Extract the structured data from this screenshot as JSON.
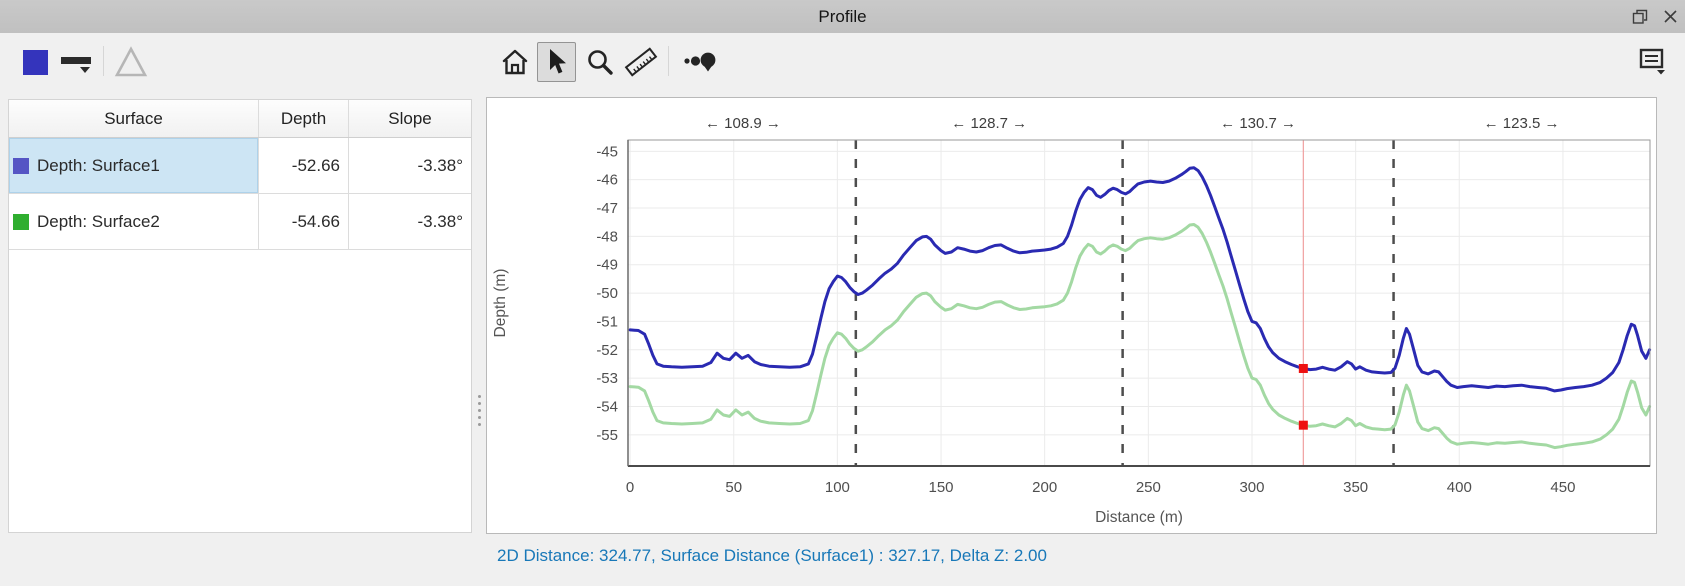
{
  "window": {
    "title": "Profile",
    "icons": [
      "float-window",
      "close"
    ]
  },
  "colors": {
    "selection-bg": "#cde5f4",
    "status-text": "#1878b8",
    "toolbar-swatch": "#3434bc",
    "surface1-swatch": "#5555c4",
    "surface2-swatch": "#2fae2f"
  },
  "toolbar": {
    "icons": [
      "color-swatch",
      "line-width-dropdown",
      "triangle-tool",
      "home",
      "pointer",
      "zoom",
      "measure-ruler",
      "show-points",
      "label-box-dropdown"
    ],
    "active_tool": "pointer"
  },
  "table": {
    "columns": [
      "Surface",
      "Depth",
      "Slope"
    ],
    "rows": [
      {
        "label": "Depth: Surface1",
        "depth": "-52.66",
        "slope": "-3.38°",
        "selected": true
      },
      {
        "label": "Depth: Surface2",
        "depth": "-54.66",
        "slope": "-3.38°",
        "selected": false
      }
    ]
  },
  "chart_data": {
    "type": "line",
    "title": "",
    "xlabel": "Distance (m)",
    "ylabel": "Depth (m)",
    "xlim": [
      -1,
      492
    ],
    "ylim": [
      -56.1,
      -44.6
    ],
    "x_ticks": [
      0,
      50,
      100,
      150,
      200,
      250,
      300,
      350,
      400,
      450
    ],
    "y_ticks": [
      -45,
      -46,
      -47,
      -48,
      -49,
      -50,
      -51,
      -52,
      -53,
      -54,
      -55
    ],
    "grid": true,
    "segments": [
      {
        "label": "← 108.9 →",
        "from": 0,
        "to": 108.9
      },
      {
        "label": "← 128.7 →",
        "from": 108.9,
        "to": 237.6
      },
      {
        "label": "← 130.7 →",
        "from": 237.6,
        "to": 368.3
      },
      {
        "label": "← 123.5 →",
        "from": 368.3,
        "to": 491.8
      }
    ],
    "cursor": {
      "x": 324.77,
      "line_color": "#f0a0a0",
      "marker_color": "#ee1111",
      "markers": [
        {
          "series": "Surface1",
          "y": -52.66
        },
        {
          "series": "Surface2",
          "y": -54.66
        }
      ]
    },
    "series": [
      {
        "name": "Surface1",
        "color": "#2a2ab2",
        "width": 3,
        "points": [
          [
            0,
            -51.3
          ],
          [
            4,
            -51.32
          ],
          [
            7,
            -51.45
          ],
          [
            9,
            -51.8
          ],
          [
            11,
            -52.2
          ],
          [
            13,
            -52.5
          ],
          [
            16,
            -52.58
          ],
          [
            20,
            -52.6
          ],
          [
            25,
            -52.62
          ],
          [
            30,
            -52.6
          ],
          [
            35,
            -52.58
          ],
          [
            39,
            -52.45
          ],
          [
            42,
            -52.12
          ],
          [
            45,
            -52.3
          ],
          [
            48,
            -52.35
          ],
          [
            51,
            -52.12
          ],
          [
            54,
            -52.3
          ],
          [
            57,
            -52.2
          ],
          [
            60,
            -52.42
          ],
          [
            63,
            -52.52
          ],
          [
            67,
            -52.58
          ],
          [
            72,
            -52.6
          ],
          [
            77,
            -52.62
          ],
          [
            82,
            -52.6
          ],
          [
            86,
            -52.5
          ],
          [
            88,
            -52.15
          ],
          [
            90,
            -51.55
          ],
          [
            92,
            -50.9
          ],
          [
            94,
            -50.3
          ],
          [
            96,
            -49.85
          ],
          [
            98,
            -49.6
          ],
          [
            100,
            -49.4
          ],
          [
            102,
            -49.45
          ],
          [
            104,
            -49.6
          ],
          [
            106,
            -49.8
          ],
          [
            108,
            -49.95
          ],
          [
            110,
            -50.05
          ],
          [
            112,
            -50.0
          ],
          [
            114,
            -49.9
          ],
          [
            117,
            -49.72
          ],
          [
            120,
            -49.5
          ],
          [
            123,
            -49.3
          ],
          [
            126,
            -49.15
          ],
          [
            129,
            -48.95
          ],
          [
            132,
            -48.65
          ],
          [
            135,
            -48.4
          ],
          [
            138,
            -48.15
          ],
          [
            141,
            -48.02
          ],
          [
            143,
            -48.0
          ],
          [
            145,
            -48.1
          ],
          [
            147,
            -48.3
          ],
          [
            150,
            -48.5
          ],
          [
            152,
            -48.6
          ],
          [
            155,
            -48.55
          ],
          [
            158,
            -48.4
          ],
          [
            161,
            -48.45
          ],
          [
            164,
            -48.52
          ],
          [
            167,
            -48.55
          ],
          [
            170,
            -48.5
          ],
          [
            173,
            -48.4
          ],
          [
            176,
            -48.32
          ],
          [
            179,
            -48.3
          ],
          [
            182,
            -48.42
          ],
          [
            185,
            -48.52
          ],
          [
            188,
            -48.58
          ],
          [
            191,
            -48.56
          ],
          [
            194,
            -48.52
          ],
          [
            197,
            -48.5
          ],
          [
            200,
            -48.48
          ],
          [
            203,
            -48.45
          ],
          [
            206,
            -48.38
          ],
          [
            209,
            -48.25
          ],
          [
            211,
            -48.0
          ],
          [
            213,
            -47.6
          ],
          [
            215,
            -47.1
          ],
          [
            217,
            -46.7
          ],
          [
            219,
            -46.45
          ],
          [
            221,
            -46.28
          ],
          [
            223,
            -46.35
          ],
          [
            225,
            -46.55
          ],
          [
            227,
            -46.62
          ],
          [
            229,
            -46.52
          ],
          [
            231,
            -46.38
          ],
          [
            233,
            -46.3
          ],
          [
            235,
            -46.35
          ],
          [
            237,
            -46.45
          ],
          [
            239,
            -46.5
          ],
          [
            241,
            -46.42
          ],
          [
            243,
            -46.28
          ],
          [
            245,
            -46.15
          ],
          [
            248,
            -46.08
          ],
          [
            251,
            -46.05
          ],
          [
            254,
            -46.08
          ],
          [
            257,
            -46.1
          ],
          [
            260,
            -46.05
          ],
          [
            263,
            -45.95
          ],
          [
            266,
            -45.82
          ],
          [
            268,
            -45.72
          ],
          [
            270,
            -45.6
          ],
          [
            272,
            -45.58
          ],
          [
            274,
            -45.68
          ],
          [
            276,
            -45.9
          ],
          [
            278,
            -46.2
          ],
          [
            280,
            -46.55
          ],
          [
            282,
            -46.95
          ],
          [
            284,
            -47.35
          ],
          [
            286,
            -47.75
          ],
          [
            288,
            -48.2
          ],
          [
            290,
            -48.7
          ],
          [
            292,
            -49.2
          ],
          [
            294,
            -49.7
          ],
          [
            296,
            -50.2
          ],
          [
            298,
            -50.65
          ],
          [
            300,
            -51.0
          ],
          [
            302,
            -51.05
          ],
          [
            304,
            -51.25
          ],
          [
            306,
            -51.6
          ],
          [
            308,
            -51.9
          ],
          [
            310,
            -52.1
          ],
          [
            313,
            -52.3
          ],
          [
            316,
            -52.42
          ],
          [
            319,
            -52.52
          ],
          [
            322,
            -52.6
          ],
          [
            324.77,
            -52.66
          ],
          [
            328,
            -52.7
          ],
          [
            331,
            -52.68
          ],
          [
            334,
            -52.62
          ],
          [
            337,
            -52.68
          ],
          [
            340,
            -52.72
          ],
          [
            343,
            -52.6
          ],
          [
            346,
            -52.42
          ],
          [
            348,
            -52.5
          ],
          [
            350,
            -52.68
          ],
          [
            352,
            -52.6
          ],
          [
            355,
            -52.72
          ],
          [
            358,
            -52.78
          ],
          [
            361,
            -52.8
          ],
          [
            364,
            -52.82
          ],
          [
            367,
            -52.8
          ],
          [
            369,
            -52.65
          ],
          [
            371,
            -52.2
          ],
          [
            373,
            -51.6
          ],
          [
            374.5,
            -51.25
          ],
          [
            376,
            -51.45
          ],
          [
            378,
            -52.0
          ],
          [
            380,
            -52.55
          ],
          [
            382,
            -52.78
          ],
          [
            385,
            -52.85
          ],
          [
            388,
            -52.75
          ],
          [
            390,
            -52.78
          ],
          [
            392,
            -52.95
          ],
          [
            394,
            -53.12
          ],
          [
            396,
            -53.25
          ],
          [
            399,
            -53.33
          ],
          [
            402,
            -53.3
          ],
          [
            406,
            -53.27
          ],
          [
            410,
            -53.3
          ],
          [
            414,
            -53.33
          ],
          [
            418,
            -53.28
          ],
          [
            422,
            -53.3
          ],
          [
            426,
            -53.27
          ],
          [
            430,
            -53.25
          ],
          [
            434,
            -53.3
          ],
          [
            438,
            -53.33
          ],
          [
            442,
            -53.36
          ],
          [
            446,
            -53.45
          ],
          [
            449,
            -53.42
          ],
          [
            452,
            -53.37
          ],
          [
            456,
            -53.33
          ],
          [
            460,
            -53.3
          ],
          [
            464,
            -53.25
          ],
          [
            468,
            -53.15
          ],
          [
            471,
            -53.0
          ],
          [
            474,
            -52.8
          ],
          [
            477,
            -52.45
          ],
          [
            479,
            -52.0
          ],
          [
            481,
            -51.5
          ],
          [
            483,
            -51.1
          ],
          [
            484.5,
            -51.15
          ],
          [
            486,
            -51.5
          ],
          [
            488,
            -52.05
          ],
          [
            490,
            -52.3
          ],
          [
            491.8,
            -52.0
          ]
        ]
      },
      {
        "name": "Surface2",
        "color": "#a3d9a3",
        "width": 3,
        "derive": {
          "from": "Surface1",
          "dz": -2.0
        }
      }
    ]
  },
  "status_bar": {
    "text": "2D Distance: 324.77, Surface Distance (Surface1) : 327.17, Delta Z: 2.00"
  }
}
